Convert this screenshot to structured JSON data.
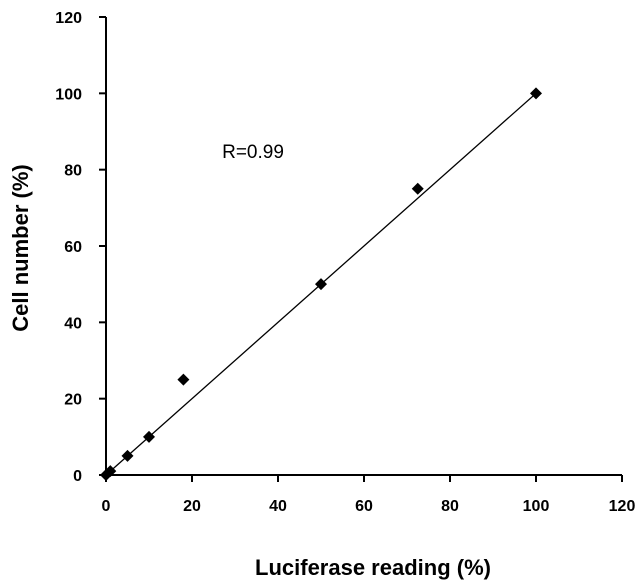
{
  "chart_data": {
    "type": "scatter",
    "title": "",
    "xlabel": "Luciferase reading (%)",
    "ylabel": "Cell number (%)",
    "xlim": [
      0,
      120
    ],
    "ylim": [
      0,
      120
    ],
    "x_ticks": [
      "0",
      "20",
      "40",
      "60",
      "80",
      "100",
      "120"
    ],
    "y_ticks": [
      "0",
      "20",
      "40",
      "60",
      "80",
      "100",
      "120"
    ],
    "grid": false,
    "legend": "none",
    "marker": "diamond",
    "marker_color": "#000000",
    "points": [
      {
        "x": 0,
        "y": 0
      },
      {
        "x": 1,
        "y": 1
      },
      {
        "x": 5,
        "y": 5
      },
      {
        "x": 10,
        "y": 10
      },
      {
        "x": 18,
        "y": 25
      },
      {
        "x": 50,
        "y": 50
      },
      {
        "x": 72.5,
        "y": 75
      },
      {
        "x": 100,
        "y": 100
      }
    ],
    "trendline": {
      "type": "linear",
      "from": [
        0,
        0
      ],
      "to": [
        100,
        100
      ]
    },
    "annotations": [
      {
        "text": "R=0.99",
        "x": 27,
        "y": 83
      }
    ]
  }
}
